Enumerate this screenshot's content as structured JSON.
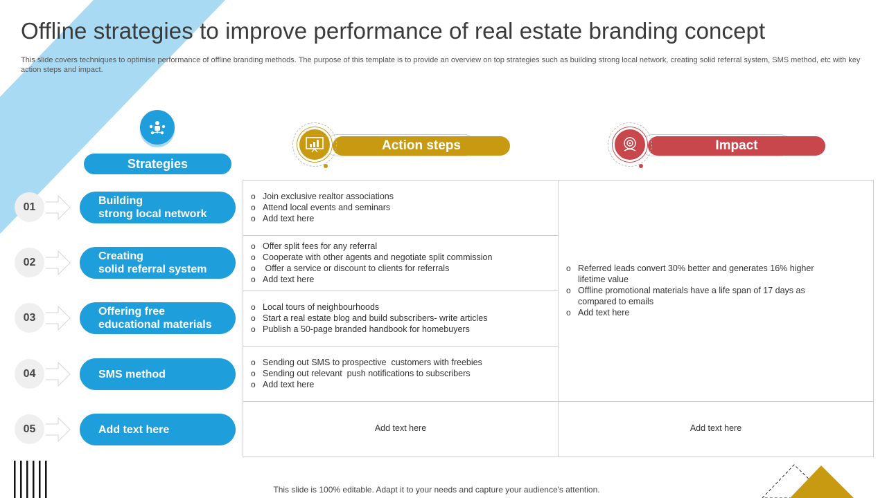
{
  "header": {
    "title": "Offline strategies to improve performance of real estate branding concept",
    "subtitle": "This slide covers techniques to optimise performance of offline branding methods. The purpose of this template is to provide an overview  on top strategies such as building strong local network, creating solid referral system, SMS method, etc with key action steps and impact."
  },
  "columns": {
    "strategies": "Strategies",
    "action_steps": "Action steps",
    "impact": "Impact"
  },
  "colors": {
    "blue": "#1e9fdc",
    "gold": "#c89a12",
    "red": "#c8474d"
  },
  "icons": {
    "strategies": "people-network-icon",
    "action_steps": "chart-board-icon",
    "impact": "target-hand-icon"
  },
  "rows": [
    {
      "number": "01",
      "strategy": "Building\nstrong local network",
      "actions": [
        "Join exclusive realtor associations",
        "Attend local events and seminars",
        "Add text here"
      ]
    },
    {
      "number": "02",
      "strategy": "Creating\nsolid referral system",
      "actions": [
        "Offer split fees for any referral",
        "Cooperate with other agents and negotiate split commission",
        " Offer a service or discount to clients for referrals",
        "Add text here"
      ]
    },
    {
      "number": "03",
      "strategy": "Offering free\neducational materials",
      "actions": [
        "Local tours of neighbourhoods",
        "Start a real estate blog and build subscribers- write articles",
        "Publish a 50-page branded handbook for homebuyers"
      ]
    },
    {
      "number": "04",
      "strategy": "SMS method",
      "actions": [
        "Sending out SMS to prospective  customers with freebies",
        "Sending out relevant  push notifications to subscribers",
        "Add text here"
      ]
    },
    {
      "number": "05",
      "strategy": "Add text here",
      "action_text": "Add text here",
      "impact_text": "Add text here"
    }
  ],
  "impact_list": [
    "Referred leads convert 30% better and generates 16% higher lifetime value",
    "Offline promotional materials have a life span of 17 days as compared to emails",
    "Add text here"
  ],
  "footer": "This slide is 100% editable. Adapt it to your needs and capture your audience's attention."
}
